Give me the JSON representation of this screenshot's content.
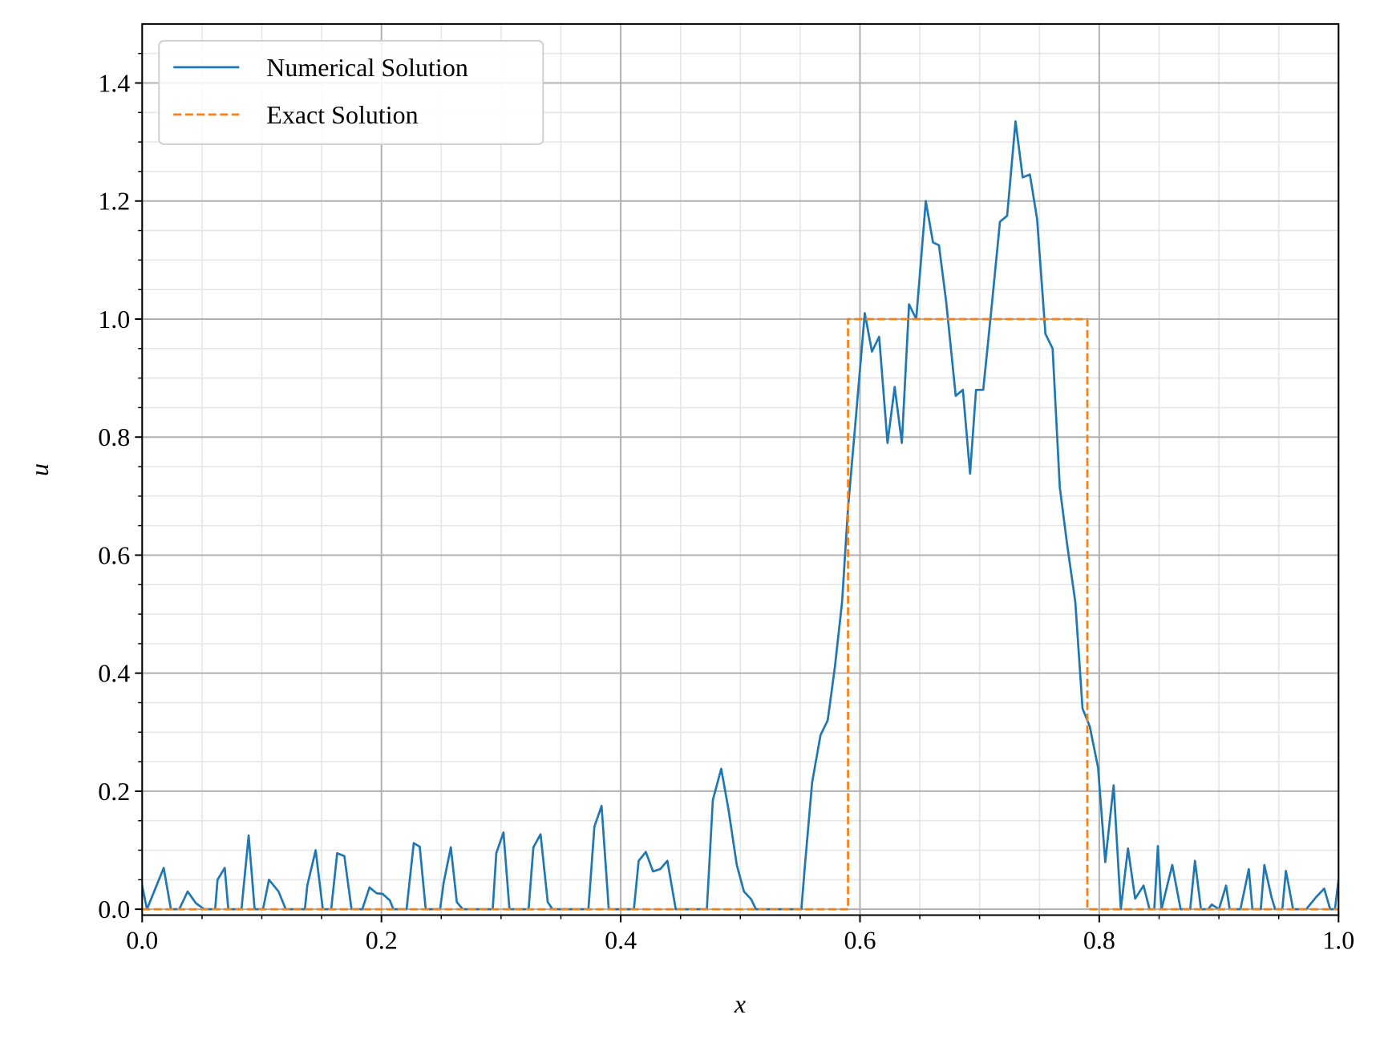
{
  "chart_data": {
    "type": "line",
    "xlabel": "x",
    "ylabel": "u",
    "xlim": [
      0,
      1
    ],
    "ylim": [
      -0.01,
      1.5
    ],
    "xticks": [
      {
        "value": 0,
        "label": "0.0"
      },
      {
        "value": 0.2,
        "label": "0.2"
      },
      {
        "value": 0.4,
        "label": "0.4"
      },
      {
        "value": 0.6,
        "label": "0.6"
      },
      {
        "value": 0.8,
        "label": "0.8"
      },
      {
        "value": 1,
        "label": "1.0"
      }
    ],
    "yticks": [
      {
        "value": 0,
        "label": "0.0"
      },
      {
        "value": 0.2,
        "label": "0.2"
      },
      {
        "value": 0.4,
        "label": "0.4"
      },
      {
        "value": 0.6,
        "label": "0.6"
      },
      {
        "value": 0.8,
        "label": "0.8"
      },
      {
        "value": 1,
        "label": "1.0"
      },
      {
        "value": 1.2,
        "label": "1.2"
      },
      {
        "value": 1.4,
        "label": "1.4"
      }
    ],
    "xminorticks": [
      0.05,
      0.1,
      0.15,
      0.25,
      0.3,
      0.35,
      0.45,
      0.5,
      0.55,
      0.65,
      0.7,
      0.75,
      0.85,
      0.9,
      0.95
    ],
    "yminorticks": [
      0.05,
      0.1,
      0.15,
      0.25,
      0.3,
      0.35,
      0.45,
      0.5,
      0.55,
      0.65,
      0.7,
      0.75,
      0.85,
      0.9,
      0.95,
      1.05,
      1.1,
      1.15,
      1.25,
      1.3,
      1.35,
      1.45
    ],
    "grid": true,
    "minor_grid": true,
    "legend": "upper left",
    "series": [
      {
        "name": "Numerical Solution",
        "color": "#1f77b4",
        "style": "solid",
        "x": [
          0.0,
          0.004,
          0.012,
          0.018,
          0.024,
          0.031,
          0.038,
          0.045,
          0.052,
          0.061,
          0.063,
          0.069,
          0.072,
          0.083,
          0.089,
          0.094,
          0.101,
          0.106,
          0.114,
          0.12,
          0.136,
          0.138,
          0.145,
          0.151,
          0.158,
          0.163,
          0.169,
          0.175,
          0.184,
          0.19,
          0.196,
          0.201,
          0.207,
          0.21,
          0.221,
          0.227,
          0.232,
          0.237,
          0.249,
          0.252,
          0.258,
          0.263,
          0.268,
          0.293,
          0.296,
          0.302,
          0.307,
          0.323,
          0.327,
          0.333,
          0.339,
          0.343,
          0.373,
          0.378,
          0.384,
          0.39,
          0.411,
          0.415,
          0.421,
          0.427,
          0.433,
          0.439,
          0.446,
          0.472,
          0.477,
          0.484,
          0.49,
          0.497,
          0.503,
          0.509,
          0.513,
          0.551,
          0.554,
          0.56,
          0.567,
          0.573,
          0.579,
          0.585,
          0.59,
          0.596,
          0.604,
          0.61,
          0.616,
          0.623,
          0.629,
          0.635,
          0.641,
          0.647,
          0.655,
          0.661,
          0.666,
          0.672,
          0.68,
          0.686,
          0.692,
          0.697,
          0.703,
          0.71,
          0.717,
          0.723,
          0.73,
          0.736,
          0.742,
          0.748,
          0.755,
          0.761,
          0.767,
          0.773,
          0.78,
          0.786,
          0.792,
          0.799,
          0.805,
          0.812,
          0.818,
          0.824,
          0.83,
          0.837,
          0.842,
          0.846,
          0.849,
          0.852,
          0.861,
          0.868,
          0.876,
          0.88,
          0.885,
          0.891,
          0.894,
          0.9,
          0.906,
          0.909,
          0.918,
          0.925,
          0.928,
          0.935,
          0.938,
          0.944,
          0.947,
          0.953,
          0.956,
          0.962,
          0.973,
          0.981,
          0.988,
          0.993,
          0.997,
          1.0
        ],
        "values": [
          0.04,
          0,
          0.04,
          0.07,
          0,
          0,
          0.03,
          0.01,
          0,
          0,
          0.05,
          0.07,
          0,
          0,
          0.125,
          0,
          0,
          0.05,
          0.03,
          0,
          0,
          0.04,
          0.1,
          0,
          0,
          0.095,
          0.09,
          0,
          0,
          0.037,
          0.027,
          0.026,
          0.015,
          0,
          0,
          0.112,
          0.106,
          0,
          0,
          0.045,
          0.105,
          0.012,
          0,
          0,
          0.095,
          0.13,
          0,
          0,
          0.105,
          0.127,
          0.012,
          0,
          0,
          0.14,
          0.175,
          0,
          0,
          0.082,
          0.097,
          0.064,
          0.068,
          0.082,
          0,
          0,
          0.185,
          0.238,
          0.17,
          0.075,
          0.03,
          0.017,
          0,
          0,
          0.075,
          0.215,
          0.295,
          0.32,
          0.41,
          0.52,
          0.68,
          0.82,
          1.01,
          0.945,
          0.97,
          0.79,
          0.885,
          0.79,
          1.025,
          1.0,
          1.2,
          1.13,
          1.125,
          1.03,
          0.87,
          0.88,
          0.738,
          0.88,
          0.88,
          1.02,
          1.165,
          1.175,
          1.335,
          1.24,
          1.245,
          1.17,
          0.975,
          0.95,
          0.715,
          0.62,
          0.52,
          0.34,
          0.31,
          0.24,
          0.08,
          0.21,
          0,
          0.103,
          0.018,
          0.04,
          0,
          0,
          0.107,
          0,
          0.075,
          0,
          0,
          0.082,
          0,
          0,
          0.008,
          0,
          0.04,
          0,
          0,
          0.068,
          0,
          0,
          0.075,
          0.02,
          0,
          0,
          0.065,
          0,
          0,
          0.02,
          0.035,
          0,
          0,
          0.05
        ]
      },
      {
        "name": "Exact Solution",
        "color": "#ff7f0e",
        "style": "dashed",
        "x": [
          0,
          0.59,
          0.59,
          0.79,
          0.79,
          1
        ],
        "values": [
          0,
          0,
          1,
          1,
          0,
          0
        ]
      }
    ]
  }
}
